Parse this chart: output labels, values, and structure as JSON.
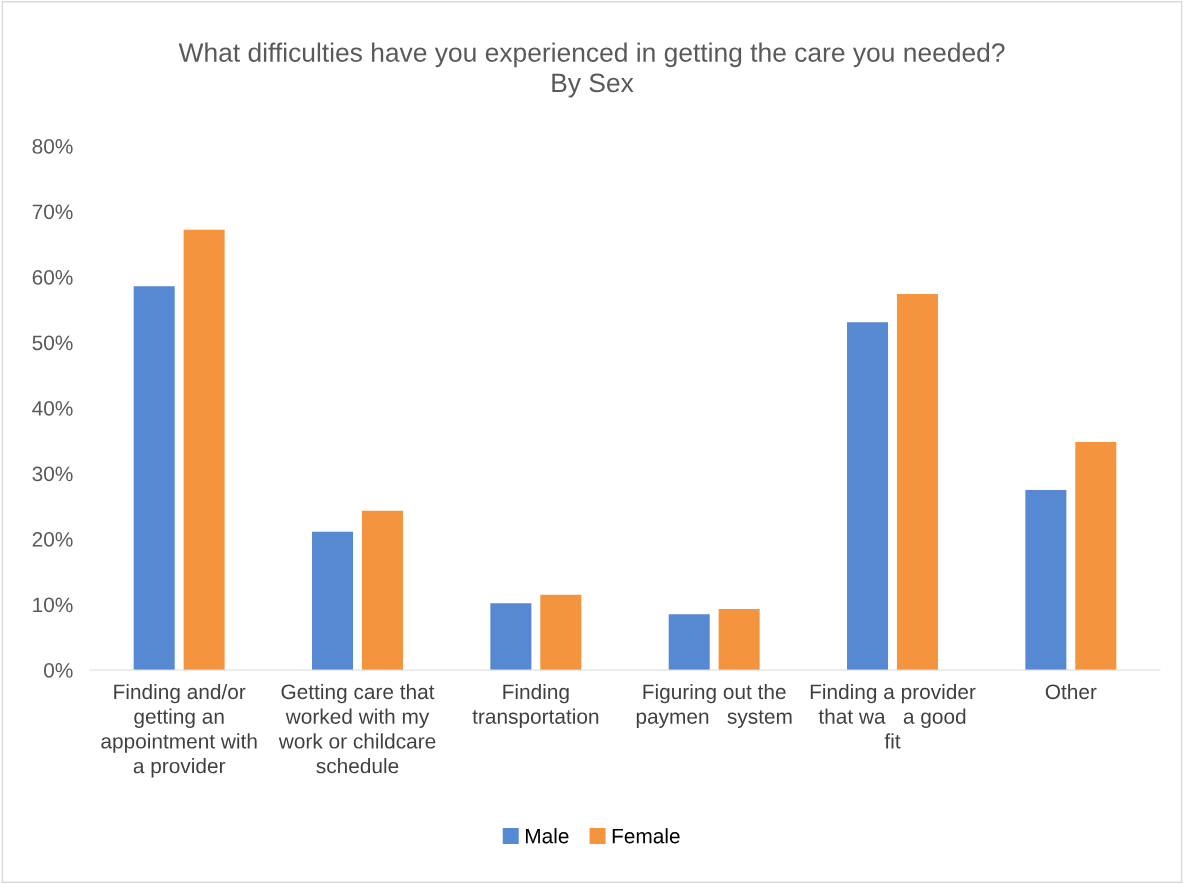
{
  "chart_data": {
    "type": "bar",
    "title": "What difficulties have you experienced in getting the care you needed?\nBy Sex",
    "categories": [
      "Finding and/or\ngetting an\nappointment with\na provider",
      "Getting care that\nworked with my\nwork or childcare\nschedule",
      "Finding\ntransportation",
      "Figuring out the\npaymen   system",
      "Finding a provider\nthat wa   a good\nfit",
      "Other"
    ],
    "series": [
      {
        "name": "Male",
        "color": "#5689d2",
        "values": [
          58.6,
          21.1,
          10.2,
          8.5,
          53.1,
          27.5
        ]
      },
      {
        "name": "Female",
        "color": "#f4943f",
        "values": [
          67.2,
          24.3,
          11.5,
          9.3,
          57.4,
          34.8
        ]
      }
    ],
    "ylim": [
      0,
      80
    ],
    "yticks": [
      {
        "value": 0,
        "label": "0%"
      },
      {
        "value": 10,
        "label": "10%"
      },
      {
        "value": 20,
        "label": "20%"
      },
      {
        "value": 30,
        "label": "30%"
      },
      {
        "value": 40,
        "label": "40%"
      },
      {
        "value": 50,
        "label": "50%"
      },
      {
        "value": 60,
        "label": "60%"
      },
      {
        "value": 70,
        "label": "70%"
      },
      {
        "value": 80,
        "label": "80%"
      }
    ],
    "grid": false,
    "legend": "bottom"
  }
}
